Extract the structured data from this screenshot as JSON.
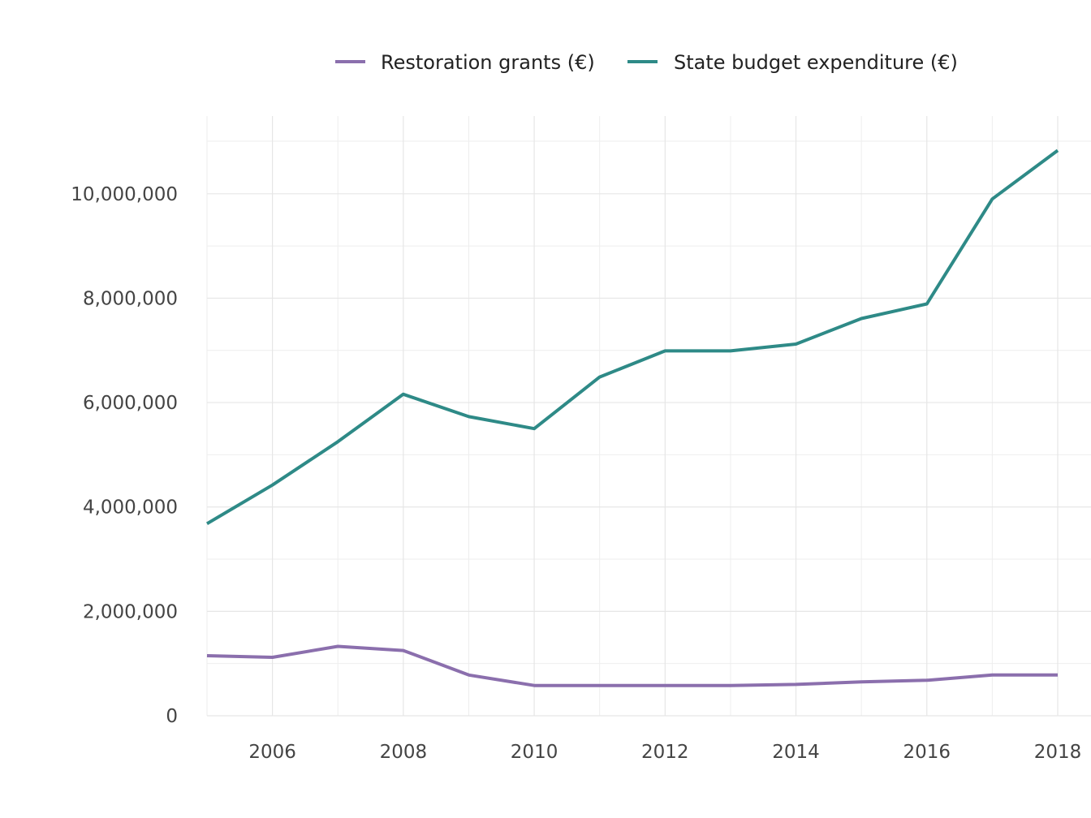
{
  "chart_data": {
    "type": "line",
    "title": "",
    "xlabel": "",
    "ylabel": "",
    "x": [
      2005,
      2006,
      2007,
      2008,
      2009,
      2010,
      2011,
      2012,
      2013,
      2014,
      2015,
      2016,
      2017,
      2018
    ],
    "xlim": [
      2005,
      2018
    ],
    "ylim": [
      0,
      11500000
    ],
    "x_ticks": [
      2006,
      2008,
      2010,
      2012,
      2014,
      2016,
      2018
    ],
    "y_ticks": [
      0,
      2000000,
      4000000,
      6000000,
      8000000,
      10000000
    ],
    "x_tick_labels": [
      "2006",
      "2008",
      "2010",
      "2012",
      "2014",
      "2016",
      "2018"
    ],
    "y_tick_labels": [
      "0",
      "2,000,000",
      "4,000,000",
      "6,000,000",
      "8,000,000",
      "10,000,000"
    ],
    "grid": true,
    "legend_position": "top",
    "series": [
      {
        "name": "Restoration grants (€)",
        "color": "#8b6fad",
        "values": [
          1150000,
          1120000,
          1330000,
          1250000,
          780000,
          580000,
          580000,
          580000,
          580000,
          600000,
          650000,
          680000,
          780000,
          780000
        ]
      },
      {
        "name": "State budget expenditure (€)",
        "color": "#2e8a87",
        "values": [
          3680000,
          4420000,
          5250000,
          6160000,
          5730000,
          5500000,
          6490000,
          6990000,
          6990000,
          7120000,
          7610000,
          7890000,
          9900000,
          10830000
        ]
      }
    ]
  }
}
